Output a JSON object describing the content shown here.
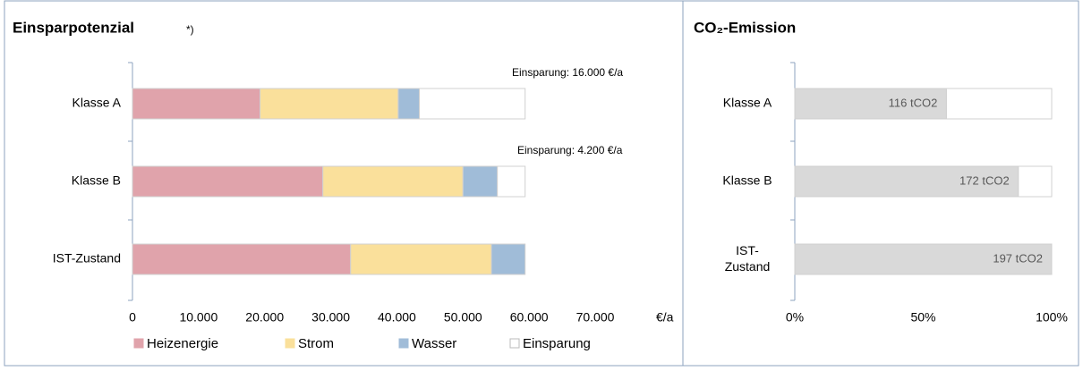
{
  "chart_data": [
    {
      "type": "bar",
      "orientation": "horizontal",
      "stacked": true,
      "title": "Einsparpotenzial",
      "title_note": "*)",
      "categories": [
        "Klasse A",
        "Klasse B",
        "IST-Zustand"
      ],
      "series": [
        {
          "name": "Heizenergie",
          "color": "#e0a3ab",
          "values": [
            19300,
            28800,
            33000
          ]
        },
        {
          "name": "Strom",
          "color": "#fae09b",
          "values": [
            20900,
            21200,
            21300
          ]
        },
        {
          "name": "Wasser",
          "color": "#a0bcd8",
          "values": [
            3200,
            5200,
            5100
          ]
        },
        {
          "name": "Einsparung",
          "color": "#ffffff",
          "values": [
            16000,
            4200,
            0
          ]
        }
      ],
      "annotations": [
        "Einsparung: 16.000 €/a",
        "Einsparung: 4.200 €/a"
      ],
      "xlabel": "€/a",
      "xlim": [
        0,
        70000
      ],
      "xticks": [
        0,
        {
          "value": 10000,
          "label": "10.000"
        },
        {
          "value": 20000,
          "label": "20.000"
        },
        {
          "value": 30000,
          "label": "30.000"
        },
        {
          "value": 40000,
          "label": "40.000"
        },
        {
          "value": 50000,
          "label": "50.000"
        },
        {
          "value": 60000,
          "label": "60.000"
        },
        {
          "value": 70000,
          "label": "70.000"
        }
      ],
      "legend": "bottom"
    },
    {
      "type": "bar",
      "orientation": "horizontal",
      "title": "CO₂-Emission",
      "categories": [
        "Klasse A",
        "Klasse B",
        "IST-\nZustand"
      ],
      "values": [
        59,
        87,
        100
      ],
      "value_labels": [
        "116 tCO2",
        "172 tCO2",
        "197 tCO2"
      ],
      "color": "#d9d9d9",
      "xlim": [
        0,
        100
      ],
      "xticks": [
        {
          "value": 0,
          "label": "0%"
        },
        {
          "value": 50,
          "label": "50%"
        },
        {
          "value": 100,
          "label": "100%"
        }
      ]
    }
  ]
}
